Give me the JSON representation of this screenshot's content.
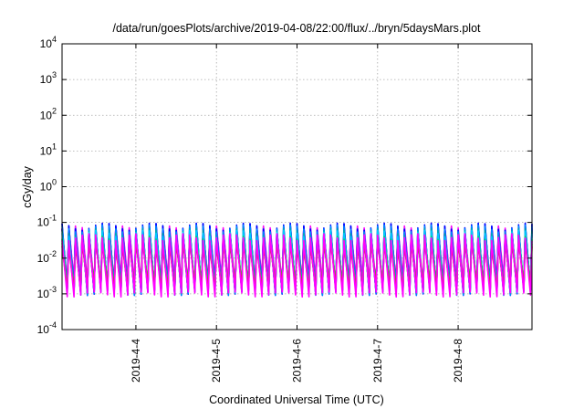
{
  "chart_data": {
    "type": "line",
    "title": "/data/run/goesPlots/archive/2019-04-08/22:00/flux/../bryn/5daysMars.plot",
    "xlabel": "Coordinated Universal Time (UTC)",
    "ylabel": "cGy/day",
    "y_scale": "log",
    "ylim": [
      0.0001,
      10000
    ],
    "xlim": [
      "2019-04-03 02:00",
      "2019-04-08 22:00"
    ],
    "grid": true,
    "y_ticks": [
      {
        "base": "10",
        "exp": "-4"
      },
      {
        "base": "10",
        "exp": "-3"
      },
      {
        "base": "10",
        "exp": "-2"
      },
      {
        "base": "10",
        "exp": "-1"
      },
      {
        "base": "10",
        "exp": "0"
      },
      {
        "base": "10",
        "exp": "1"
      },
      {
        "base": "10",
        "exp": "2"
      },
      {
        "base": "10",
        "exp": "3"
      },
      {
        "base": "10",
        "exp": "4"
      }
    ],
    "x_ticks": [
      "2019-4-4",
      "2019-4-5",
      "2019-4-6",
      "2019-4-7",
      "2019-4-8"
    ],
    "oscillation": {
      "cycles_per_day": 12,
      "peaks": [
        0.05,
        0.08
      ],
      "troughs": [
        0.0025,
        0.0018
      ]
    },
    "series": [
      {
        "color": "#ff00ff",
        "peak_factor": 1.0,
        "trough_factor": 1.0
      },
      {
        "color": "#ee11ee",
        "peak_factor": 0.95,
        "trough_factor": 0.9
      },
      {
        "color": "#dd22dd",
        "peak_factor": 0.9,
        "trough_factor": 0.8
      },
      {
        "color": "#cc00ff",
        "peak_factor": 0.9,
        "trough_factor": 0.75
      },
      {
        "color": "#9933ff",
        "peak_factor": 0.85,
        "trough_factor": 0.7
      },
      {
        "color": "#6600cc",
        "peak_factor": 0.8,
        "trough_factor": 0.6
      },
      {
        "color": "#3366ff",
        "peak_factor": 1.15,
        "trough_factor": 0.55
      },
      {
        "color": "#0000ff",
        "peak_factor": 1.2,
        "trough_factor": 0.5
      },
      {
        "color": "#0088ff",
        "peak_factor": 1.05,
        "trough_factor": 0.5
      },
      {
        "color": "#00aaaa",
        "peak_factor": 0.85,
        "trough_factor": 0.55
      },
      {
        "color": "#00ccff",
        "peak_factor": 0.75,
        "trough_factor": 0.6
      },
      {
        "color": "#00dd66",
        "peak_factor": 0.55,
        "trough_factor": 0.65
      },
      {
        "color": "#00ff00",
        "peak_factor": 0.45,
        "trough_factor": 0.75
      },
      {
        "color": "#cc3333",
        "peak_factor": 0.4,
        "trough_factor": 0.7
      },
      {
        "color": "#ff00ff",
        "peak_factor": 0.6,
        "trough_factor": 0.45
      }
    ]
  }
}
